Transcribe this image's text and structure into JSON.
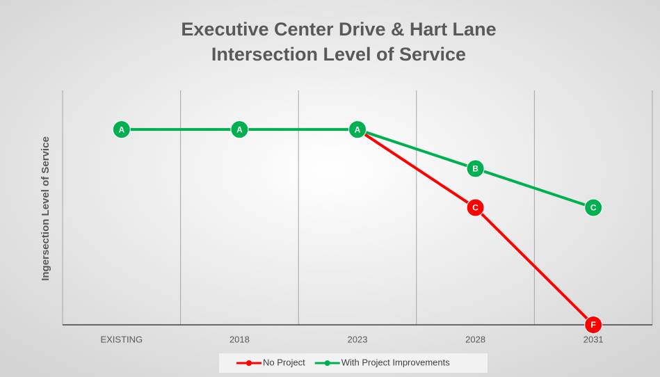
{
  "chart_data": {
    "type": "line",
    "title": [
      "Executive Center Drive & Hart Lane",
      "Intersection Level of Service"
    ],
    "y_label": "Ingersection Level of Service",
    "categories": [
      "EXISTING",
      "2018",
      "2023",
      "2028",
      "2031"
    ],
    "ylim": [
      0,
      6
    ],
    "series": [
      {
        "name": "No Project",
        "color": "#ff0000",
        "values": [
          null,
          null,
          5,
          3,
          0
        ],
        "value_labels": [
          null,
          null,
          "A",
          "C",
          "F"
        ]
      },
      {
        "name": "With Project Improvements",
        "color": "#00b050",
        "values": [
          5,
          5,
          5,
          4,
          3
        ],
        "value_labels": [
          "A",
          "A",
          "A",
          "B",
          "C"
        ]
      }
    ],
    "grid": true,
    "legend": "bottom"
  }
}
